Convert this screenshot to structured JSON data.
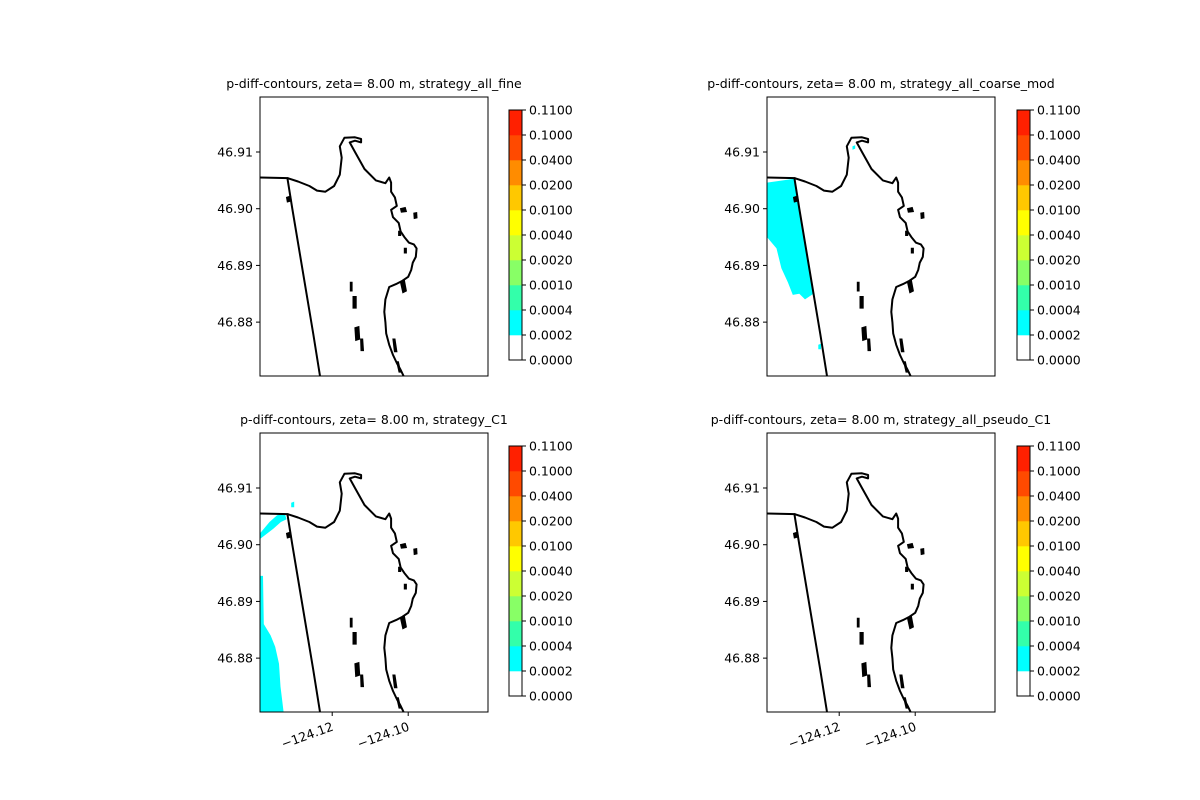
{
  "chart_data": [
    {
      "type": "heatmap",
      "title": "p-diff-contours, zeta= 8.00 m, strategy_all_fine",
      "xlabel": "",
      "ylabel": "",
      "xlim": [
        -124.139,
        -124.079
      ],
      "ylim": [
        46.8705,
        46.9197
      ],
      "yticks": [
        46.88,
        46.89,
        46.9,
        46.91
      ],
      "ytick_labels": [
        "46.88",
        "46.89",
        "46.90",
        "46.91"
      ],
      "xticks": [],
      "xtick_labels": [],
      "colorbar": {
        "levels": [
          "0.0000",
          "0.0002",
          "0.0004",
          "0.0010",
          "0.0020",
          "0.0040",
          "0.0100",
          "0.0200",
          "0.0400",
          "0.1000",
          "0.1100"
        ],
        "colors": [
          "#ffffff",
          "#00ffff",
          "#33ffaa",
          "#88ff66",
          "#ccff33",
          "#ffff00",
          "#ffc800",
          "#ff8c00",
          "#ff4a00",
          "#ff2000"
        ]
      },
      "regions": []
    },
    {
      "type": "heatmap",
      "title": "p-diff-contours, zeta= 8.00 m, strategy_all_coarse_mod",
      "xlabel": "",
      "ylabel": "",
      "xlim": [
        -124.139,
        -124.079
      ],
      "ylim": [
        46.8705,
        46.9197
      ],
      "yticks": [
        46.88,
        46.89,
        46.9,
        46.91
      ],
      "ytick_labels": [
        "46.88",
        "46.89",
        "46.90",
        "46.91"
      ],
      "xticks": [],
      "xtick_labels": [],
      "colorbar": {
        "levels": [
          "0.0000",
          "0.0002",
          "0.0004",
          "0.0010",
          "0.0020",
          "0.0040",
          "0.0100",
          "0.0200",
          "0.0400",
          "0.1000",
          "0.1100"
        ],
        "colors": [
          "#ffffff",
          "#00ffff",
          "#33ffaa",
          "#88ff66",
          "#ccff33",
          "#ffff00",
          "#ffc800",
          "#ff8c00",
          "#ff4a00",
          "#ff2000"
        ]
      },
      "regions": [
        {
          "level": "0.0002",
          "points": [
            [
              -124.139,
              46.9046
            ],
            [
              -124.1318,
              46.9053
            ],
            [
              -124.1305,
              46.9
            ],
            [
              -124.1268,
              46.885
            ],
            [
              -124.129,
              46.884
            ],
            [
              -124.1305,
              46.885
            ],
            [
              -124.1322,
              46.8848
            ],
            [
              -124.1335,
              46.887
            ],
            [
              -124.1352,
              46.8895
            ],
            [
              -124.1365,
              46.893
            ],
            [
              -124.139,
              46.895
            ]
          ]
        },
        {
          "level": "0.0002",
          "points": [
            [
              -124.1165,
              46.911
            ],
            [
              -124.1158,
              46.9112
            ],
            [
              -124.1158,
              46.9106
            ],
            [
              -124.1165,
              46.9104
            ]
          ]
        },
        {
          "level": "0.0002",
          "points": [
            [
              -124.1255,
              46.876
            ],
            [
              -124.1248,
              46.8762
            ],
            [
              -124.1248,
              46.8752
            ],
            [
              -124.1255,
              46.8752
            ]
          ]
        }
      ]
    },
    {
      "type": "heatmap",
      "title": "p-diff-contours, zeta= 8.00 m, strategy_C1",
      "xlabel": "",
      "ylabel": "",
      "xlim": [
        -124.139,
        -124.079
      ],
      "ylim": [
        46.8705,
        46.9197
      ],
      "yticks": [
        46.88,
        46.89,
        46.9,
        46.91
      ],
      "ytick_labels": [
        "46.88",
        "46.89",
        "46.90",
        "46.91"
      ],
      "xticks": [
        -124.12,
        -124.1
      ],
      "xtick_labels": [
        "−124.12",
        "−124.10"
      ],
      "colorbar": {
        "levels": [
          "0.0000",
          "0.0002",
          "0.0004",
          "0.0010",
          "0.0020",
          "0.0040",
          "0.0100",
          "0.0200",
          "0.0400",
          "0.1000",
          "0.1100"
        ],
        "colors": [
          "#ffffff",
          "#00ffff",
          "#33ffaa",
          "#88ff66",
          "#ccff33",
          "#ffff00",
          "#ffc800",
          "#ff8c00",
          "#ff4a00",
          "#ff2000"
        ]
      },
      "regions": [
        {
          "level": "0.0002",
          "points": [
            [
              -124.139,
              46.902
            ],
            [
              -124.1365,
              46.904
            ],
            [
              -124.1345,
              46.9052
            ],
            [
              -124.1325,
              46.9055
            ],
            [
              -124.132,
              46.9045
            ],
            [
              -124.1335,
              46.904
            ],
            [
              -124.1355,
              46.9028
            ],
            [
              -124.139,
              46.901
            ]
          ]
        },
        {
          "level": "0.0002",
          "points": [
            [
              -124.139,
              46.8945
            ],
            [
              -124.1382,
              46.8945
            ],
            [
              -124.138,
              46.886
            ],
            [
              -124.1362,
              46.884
            ],
            [
              -124.135,
              46.882
            ],
            [
              -124.134,
              46.879
            ],
            [
              -124.1336,
              46.875
            ],
            [
              -124.1328,
              46.8705
            ],
            [
              -124.139,
              46.8705
            ]
          ]
        },
        {
          "level": "0.0002",
          "points": [
            [
              -124.1308,
              46.9074
            ],
            [
              -124.13,
              46.9076
            ],
            [
              -124.13,
              46.9066
            ],
            [
              -124.1308,
              46.9066
            ]
          ]
        }
      ]
    },
    {
      "type": "heatmap",
      "title": "p-diff-contours, zeta= 8.00 m, strategy_all_pseudo_C1",
      "xlabel": "",
      "ylabel": "",
      "xlim": [
        -124.139,
        -124.079
      ],
      "ylim": [
        46.8705,
        46.9197
      ],
      "yticks": [
        46.88,
        46.89,
        46.9,
        46.91
      ],
      "ytick_labels": [
        "46.88",
        "46.89",
        "46.90",
        "46.91"
      ],
      "xticks": [
        -124.12,
        -124.1
      ],
      "xtick_labels": [
        "−124.12",
        "−124.10"
      ],
      "colorbar": {
        "levels": [
          "0.0000",
          "0.0002",
          "0.0004",
          "0.0010",
          "0.0020",
          "0.0040",
          "0.0100",
          "0.0200",
          "0.0400",
          "0.1000",
          "0.1100"
        ],
        "colors": [
          "#ffffff",
          "#00ffff",
          "#33ffaa",
          "#88ff66",
          "#ccff33",
          "#ffff00",
          "#ffc800",
          "#ff8c00",
          "#ff4a00",
          "#ff2000"
        ]
      },
      "regions": []
    }
  ],
  "coastline": {
    "outer_coast": [
      [
        -124.139,
        46.9055
      ],
      [
        -124.1318,
        46.9054
      ],
      [
        -124.1305,
        46.9
      ],
      [
        -124.125,
        46.878
      ],
      [
        -124.1232,
        46.8705
      ]
    ],
    "bay_shore": [
      [
        -124.1318,
        46.9054
      ],
      [
        -124.129,
        46.9048
      ],
      [
        -124.126,
        46.904
      ],
      [
        -124.124,
        46.9032
      ],
      [
        -124.1218,
        46.903
      ],
      [
        -124.1195,
        46.904
      ],
      [
        -124.118,
        46.906
      ],
      [
        -124.1175,
        46.909
      ],
      [
        -124.118,
        46.911
      ],
      [
        -124.1168,
        46.9125
      ],
      [
        -124.114,
        46.9126
      ],
      [
        -124.1124,
        46.9123
      ],
      [
        -124.1124,
        46.9117
      ],
      [
        -124.114,
        46.912
      ],
      [
        -124.1154,
        46.9117
      ],
      [
        -124.114,
        46.91
      ],
      [
        -124.1115,
        46.907
      ],
      [
        -124.1085,
        46.905
      ],
      [
        -124.106,
        46.9045
      ],
      [
        -124.105,
        46.9055
      ],
      [
        -124.1045,
        46.9046
      ],
      [
        -124.1045,
        46.903
      ],
      [
        -124.1035,
        46.902
      ],
      [
        -124.103,
        46.9005
      ],
      [
        -124.1045,
        46.8998
      ],
      [
        -124.104,
        46.8985
      ],
      [
        -124.1025,
        46.8975
      ],
      [
        -124.102,
        46.896
      ],
      [
        -124.101,
        46.895
      ],
      [
        -124.0998,
        46.894
      ],
      [
        -124.0985,
        46.8937
      ],
      [
        -124.0978,
        46.893
      ],
      [
        -124.098,
        46.8915
      ],
      [
        -124.0988,
        46.8905
      ],
      [
        -124.0992,
        46.8892
      ],
      [
        -124.1,
        46.888
      ],
      [
        -124.1015,
        46.8873
      ],
      [
        -124.1032,
        46.8867
      ],
      [
        -124.105,
        46.8862
      ],
      [
        -124.106,
        46.884
      ],
      [
        -124.1063,
        46.8818
      ],
      [
        -124.106,
        46.88
      ],
      [
        -124.1058,
        46.878
      ],
      [
        -124.105,
        46.876
      ],
      [
        -124.104,
        46.8742
      ],
      [
        -124.103,
        46.8728
      ],
      [
        -124.102,
        46.8716
      ],
      [
        -124.1012,
        46.8705
      ]
    ],
    "islands": [
      [
        [
          -124.132,
          46.902
        ],
        [
          -124.131,
          46.9022
        ],
        [
          -124.1308,
          46.9014
        ],
        [
          -124.1318,
          46.9012
        ]
      ],
      [
        [
          -124.102,
          46.9
        ],
        [
          -124.1008,
          46.9002
        ],
        [
          -124.1005,
          46.8995
        ],
        [
          -124.1018,
          46.8994
        ]
      ],
      [
        [
          -124.0985,
          46.8992
        ],
        [
          -124.0978,
          46.8993
        ],
        [
          -124.0977,
          46.8984
        ],
        [
          -124.0984,
          46.8983
        ]
      ],
      [
        [
          -124.1025,
          46.896
        ],
        [
          -124.102,
          46.896
        ],
        [
          -124.102,
          46.8953
        ],
        [
          -124.1025,
          46.8953
        ]
      ],
      [
        [
          -124.101,
          46.893
        ],
        [
          -124.1005,
          46.893
        ],
        [
          -124.1005,
          46.8922
        ],
        [
          -124.101,
          46.8922
        ]
      ],
      [
        [
          -124.102,
          46.887
        ],
        [
          -124.101,
          46.8873
        ],
        [
          -124.1005,
          46.8855
        ],
        [
          -124.1014,
          46.8852
        ]
      ],
      [
        [
          -124.1152,
          46.887
        ],
        [
          -124.1148,
          46.887
        ],
        [
          -124.1148,
          46.8855
        ],
        [
          -124.1152,
          46.8855
        ]
      ],
      [
        [
          -124.1145,
          46.8845
        ],
        [
          -124.1137,
          46.8845
        ],
        [
          -124.1137,
          46.8825
        ],
        [
          -124.1145,
          46.8825
        ]
      ],
      [
        [
          -124.114,
          46.879
        ],
        [
          -124.113,
          46.8792
        ],
        [
          -124.1128,
          46.877
        ],
        [
          -124.1138,
          46.8768
        ]
      ],
      [
        [
          -124.1125,
          46.877
        ],
        [
          -124.112,
          46.877
        ],
        [
          -124.1118,
          46.875
        ],
        [
          -124.1124,
          46.875
        ]
      ],
      [
        [
          -124.104,
          46.877
        ],
        [
          -124.1035,
          46.877
        ],
        [
          -124.103,
          46.8748
        ],
        [
          -124.1036,
          46.8748
        ]
      ],
      [
        [
          -124.103,
          46.873
        ],
        [
          -124.1026,
          46.873
        ],
        [
          -124.102,
          46.8712
        ],
        [
          -124.1024,
          46.8712
        ]
      ]
    ]
  }
}
